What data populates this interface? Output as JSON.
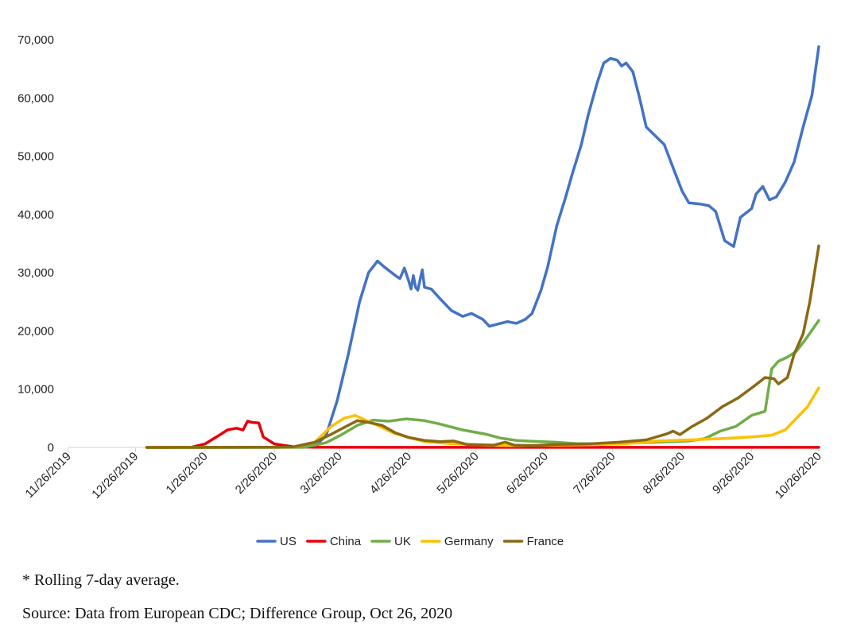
{
  "chart_data": {
    "type": "line",
    "title": "",
    "xlabel": "",
    "ylabel": "",
    "x_axis": {
      "type": "date",
      "range": [
        "2019-11-26",
        "2020-10-26"
      ],
      "tick_labels": [
        "11/26/2019",
        "12/26/2019",
        "1/26/2020",
        "2/26/2020",
        "3/26/2020",
        "4/26/2020",
        "5/26/2020",
        "6/26/2020",
        "7/26/2020",
        "8/26/2020",
        "9/26/2020",
        "10/26/2020"
      ],
      "tick_dates": [
        "2019-11-26",
        "2019-12-26",
        "2020-01-26",
        "2020-02-26",
        "2020-03-26",
        "2020-04-26",
        "2020-05-26",
        "2020-06-26",
        "2020-07-26",
        "2020-08-26",
        "2020-09-26",
        "2020-10-26"
      ]
    },
    "y_axis": {
      "range": [
        0,
        70000
      ],
      "tick_values": [
        0,
        10000,
        20000,
        30000,
        40000,
        50000,
        60000,
        70000
      ],
      "tick_labels": [
        "0",
        "10,000",
        "20,000",
        "30,000",
        "40,000",
        "50,000",
        "60,000",
        "70,000"
      ]
    },
    "grid": false,
    "legend_position": "bottom",
    "series": [
      {
        "name": "US",
        "color": "#4472C4",
        "points": [
          [
            "2019-12-31",
            0
          ],
          [
            "2020-02-28",
            10
          ],
          [
            "2020-03-15",
            200
          ],
          [
            "2020-03-20",
            2000
          ],
          [
            "2020-03-25",
            8000
          ],
          [
            "2020-03-30",
            16000
          ],
          [
            "2020-04-04",
            25000
          ],
          [
            "2020-04-08",
            30000
          ],
          [
            "2020-04-12",
            32000
          ],
          [
            "2020-04-15",
            31000
          ],
          [
            "2020-04-20",
            29500
          ],
          [
            "2020-04-22",
            29000
          ],
          [
            "2020-04-24",
            30800
          ],
          [
            "2020-04-26",
            28500
          ],
          [
            "2020-04-27",
            27200
          ],
          [
            "2020-04-28",
            29500
          ],
          [
            "2020-04-29",
            27500
          ],
          [
            "2020-04-30",
            27000
          ],
          [
            "2020-05-02",
            30500
          ],
          [
            "2020-05-03",
            27500
          ],
          [
            "2020-05-06",
            27200
          ],
          [
            "2020-05-10",
            25500
          ],
          [
            "2020-05-15",
            23500
          ],
          [
            "2020-05-20",
            22500
          ],
          [
            "2020-05-24",
            23000
          ],
          [
            "2020-05-29",
            22000
          ],
          [
            "2020-06-01",
            20800
          ],
          [
            "2020-06-05",
            21200
          ],
          [
            "2020-06-09",
            21600
          ],
          [
            "2020-06-13",
            21300
          ],
          [
            "2020-06-17",
            22000
          ],
          [
            "2020-06-20",
            23000
          ],
          [
            "2020-06-24",
            27000
          ],
          [
            "2020-06-27",
            31000
          ],
          [
            "2020-07-01",
            38000
          ],
          [
            "2020-07-05",
            43000
          ],
          [
            "2020-07-08",
            47000
          ],
          [
            "2020-07-12",
            52000
          ],
          [
            "2020-07-15",
            57000
          ],
          [
            "2020-07-19",
            62500
          ],
          [
            "2020-07-22",
            66000
          ],
          [
            "2020-07-25",
            66800
          ],
          [
            "2020-07-28",
            66500
          ],
          [
            "2020-07-30",
            65500
          ],
          [
            "2020-08-01",
            66000
          ],
          [
            "2020-08-04",
            64500
          ],
          [
            "2020-08-07",
            60000
          ],
          [
            "2020-08-10",
            55000
          ],
          [
            "2020-08-14",
            53500
          ],
          [
            "2020-08-18",
            52000
          ],
          [
            "2020-08-22",
            48000
          ],
          [
            "2020-08-26",
            44000
          ],
          [
            "2020-08-29",
            42000
          ],
          [
            "2020-09-03",
            41800
          ],
          [
            "2020-09-07",
            41500
          ],
          [
            "2020-09-10",
            40500
          ],
          [
            "2020-09-14",
            35500
          ],
          [
            "2020-09-18",
            34500
          ],
          [
            "2020-09-21",
            39500
          ],
          [
            "2020-09-26",
            41000
          ],
          [
            "2020-09-28",
            43500
          ],
          [
            "2020-10-01",
            44800
          ],
          [
            "2020-10-04",
            42500
          ],
          [
            "2020-10-07",
            43000
          ],
          [
            "2020-10-11",
            45500
          ],
          [
            "2020-10-15",
            49000
          ],
          [
            "2020-10-19",
            55000
          ],
          [
            "2020-10-23",
            60500
          ],
          [
            "2020-10-26",
            68800
          ]
        ]
      },
      {
        "name": "China",
        "color": "#E8000B",
        "points": [
          [
            "2019-12-31",
            0
          ],
          [
            "2020-01-20",
            40
          ],
          [
            "2020-01-26",
            600
          ],
          [
            "2020-02-01",
            2000
          ],
          [
            "2020-02-05",
            3000
          ],
          [
            "2020-02-09",
            3300
          ],
          [
            "2020-02-12",
            3000
          ],
          [
            "2020-02-14",
            4500
          ],
          [
            "2020-02-16",
            4300
          ],
          [
            "2020-02-19",
            4200
          ],
          [
            "2020-02-21",
            1800
          ],
          [
            "2020-02-26",
            600
          ],
          [
            "2020-03-01",
            350
          ],
          [
            "2020-03-06",
            100
          ],
          [
            "2020-03-15",
            40
          ],
          [
            "2020-04-15",
            20
          ],
          [
            "2020-10-26",
            15
          ]
        ]
      },
      {
        "name": "UK",
        "color": "#70AD47",
        "points": [
          [
            "2019-12-31",
            0
          ],
          [
            "2020-03-10",
            20
          ],
          [
            "2020-03-20",
            800
          ],
          [
            "2020-03-27",
            2200
          ],
          [
            "2020-04-03",
            3800
          ],
          [
            "2020-04-10",
            4700
          ],
          [
            "2020-04-17",
            4500
          ],
          [
            "2020-04-25",
            4900
          ],
          [
            "2020-05-03",
            4600
          ],
          [
            "2020-05-10",
            4000
          ],
          [
            "2020-05-20",
            3000
          ],
          [
            "2020-05-30",
            2300
          ],
          [
            "2020-06-06",
            1600
          ],
          [
            "2020-06-13",
            1200
          ],
          [
            "2020-06-20",
            1050
          ],
          [
            "2020-06-30",
            900
          ],
          [
            "2020-07-10",
            650
          ],
          [
            "2020-07-20",
            650
          ],
          [
            "2020-08-01",
            750
          ],
          [
            "2020-08-15",
            900
          ],
          [
            "2020-08-29",
            1100
          ],
          [
            "2020-09-05",
            1500
          ],
          [
            "2020-09-12",
            2800
          ],
          [
            "2020-09-19",
            3600
          ],
          [
            "2020-09-26",
            5500
          ],
          [
            "2020-10-02",
            6200
          ],
          [
            "2020-10-05",
            13500
          ],
          [
            "2020-10-08",
            14800
          ],
          [
            "2020-10-12",
            15500
          ],
          [
            "2020-10-16",
            16500
          ],
          [
            "2020-10-20",
            18500
          ],
          [
            "2020-10-26",
            21800
          ]
        ]
      },
      {
        "name": "Germany",
        "color": "#FFC000",
        "points": [
          [
            "2019-12-31",
            0
          ],
          [
            "2020-03-05",
            40
          ],
          [
            "2020-03-15",
            900
          ],
          [
            "2020-03-22",
            3500
          ],
          [
            "2020-03-28",
            5000
          ],
          [
            "2020-04-02",
            5500
          ],
          [
            "2020-04-06",
            4800
          ],
          [
            "2020-04-12",
            3800
          ],
          [
            "2020-04-19",
            2500
          ],
          [
            "2020-04-26",
            1700
          ],
          [
            "2020-05-03",
            1000
          ],
          [
            "2020-05-15",
            650
          ],
          [
            "2020-06-01",
            350
          ],
          [
            "2020-06-15",
            300
          ],
          [
            "2020-07-01",
            400
          ],
          [
            "2020-07-15",
            450
          ],
          [
            "2020-08-01",
            650
          ],
          [
            "2020-08-15",
            1100
          ],
          [
            "2020-08-29",
            1300
          ],
          [
            "2020-09-12",
            1500
          ],
          [
            "2020-09-26",
            1800
          ],
          [
            "2020-10-05",
            2100
          ],
          [
            "2020-10-11",
            3000
          ],
          [
            "2020-10-16",
            5000
          ],
          [
            "2020-10-21",
            7000
          ],
          [
            "2020-10-26",
            10200
          ]
        ]
      },
      {
        "name": "France",
        "color": "#8B6914",
        "points": [
          [
            "2019-12-31",
            0
          ],
          [
            "2020-03-05",
            50
          ],
          [
            "2020-03-15",
            900
          ],
          [
            "2020-03-22",
            2200
          ],
          [
            "2020-03-29",
            3600
          ],
          [
            "2020-04-03",
            4600
          ],
          [
            "2020-04-08",
            4300
          ],
          [
            "2020-04-14",
            3800
          ],
          [
            "2020-04-20",
            2500
          ],
          [
            "2020-04-26",
            1700
          ],
          [
            "2020-05-03",
            1200
          ],
          [
            "2020-05-10",
            1000
          ],
          [
            "2020-05-16",
            1100
          ],
          [
            "2020-05-22",
            500
          ],
          [
            "2020-06-03",
            400
          ],
          [
            "2020-06-08",
            900
          ],
          [
            "2020-06-12",
            400
          ],
          [
            "2020-06-20",
            300
          ],
          [
            "2020-07-01",
            500
          ],
          [
            "2020-07-15",
            600
          ],
          [
            "2020-07-29",
            900
          ],
          [
            "2020-08-10",
            1300
          ],
          [
            "2020-08-19",
            2300
          ],
          [
            "2020-08-22",
            2800
          ],
          [
            "2020-08-25",
            2200
          ],
          [
            "2020-08-30",
            3500
          ],
          [
            "2020-09-06",
            5000
          ],
          [
            "2020-09-13",
            7000
          ],
          [
            "2020-09-20",
            8500
          ],
          [
            "2020-09-27",
            10500
          ],
          [
            "2020-10-02",
            12000
          ],
          [
            "2020-10-06",
            11800
          ],
          [
            "2020-10-08",
            10900
          ],
          [
            "2020-10-12",
            12000
          ],
          [
            "2020-10-15",
            16000
          ],
          [
            "2020-10-19",
            19500
          ],
          [
            "2020-10-22",
            25000
          ],
          [
            "2020-10-26",
            34600
          ]
        ]
      }
    ]
  },
  "notes": {
    "footnote": "* Rolling 7-day average.",
    "source": "Source: Data from European CDC; Difference Group, Oct 26, 2020"
  }
}
